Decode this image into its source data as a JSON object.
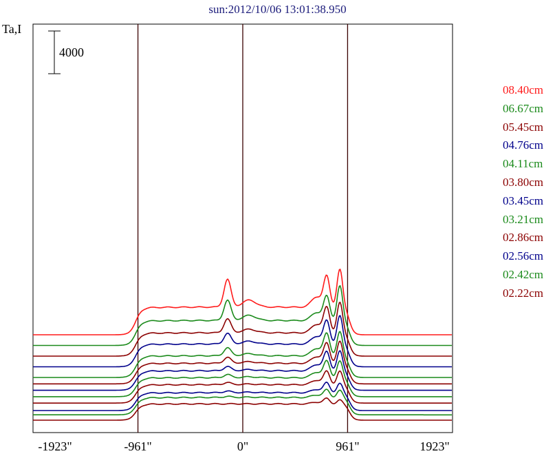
{
  "header": {
    "title": "sun:2012/10/06 13:01:38.950"
  },
  "chart_data": {
    "type": "line",
    "title": "sun:2012/10/06 13:01:38.950",
    "ylabel": "Ta,I",
    "scale_bar": "4000",
    "x_unit": "arcsec",
    "xlim": [
      -1923,
      1923
    ],
    "x_ticks": [
      "-1923\"",
      "-961\"",
      "0\"",
      "961\"",
      "1923\""
    ],
    "x_tick_values": [
      -1923,
      -961,
      0,
      961,
      1923
    ],
    "vertical_lines": [
      -961,
      0,
      961
    ],
    "profile_note": "stacked solar brightness scans, offset vertically; each trace: quiet-sun plateau between limbs with peaks near x=-140 and near the west limb (~770 and ~890)",
    "series": [
      {
        "name": "08.40cm",
        "color": "#ff1a1a",
        "baseline": 8000,
        "disk": 2550,
        "center_peak": 2600,
        "limb_peak1": 2800,
        "limb_peak2": 3600
      },
      {
        "name": "06.67cm",
        "color": "#1a8a1a",
        "baseline": 7000,
        "disk": 2300,
        "center_peak": 1900,
        "limb_peak1": 2200,
        "limb_peak2": 3300
      },
      {
        "name": "05.45cm",
        "color": "#8b0000",
        "baseline": 6000,
        "disk": 2150,
        "center_peak": 1300,
        "limb_peak1": 2300,
        "limb_peak2": 2900
      },
      {
        "name": "04.76cm",
        "color": "#00008b",
        "baseline": 5000,
        "disk": 2100,
        "center_peak": 1000,
        "limb_peak1": 2100,
        "limb_peak2": 2700
      },
      {
        "name": "04.11cm",
        "color": "#1a8a1a",
        "baseline": 4000,
        "disk": 2000,
        "center_peak": 750,
        "limb_peak1": 2000,
        "limb_peak2": 2300
      },
      {
        "name": "03.80cm",
        "color": "#8b0000",
        "baseline": 3400,
        "disk": 1900,
        "center_peak": 550,
        "limb_peak1": 1800,
        "limb_peak2": 2100
      },
      {
        "name": "03.45cm",
        "color": "#00008b",
        "baseline": 2800,
        "disk": 1800,
        "center_peak": 400,
        "limb_peak1": 1700,
        "limb_peak2": 1900
      },
      {
        "name": "03.21cm",
        "color": "#1a8a1a",
        "baseline": 2200,
        "disk": 1750,
        "center_peak": 300,
        "limb_peak1": 1500,
        "limb_peak2": 1600
      },
      {
        "name": "02.86cm",
        "color": "#8b0000",
        "baseline": 1600,
        "disk": 1700,
        "center_peak": 200,
        "limb_peak1": 1200,
        "limb_peak2": 1300
      },
      {
        "name": "02.56cm",
        "color": "#00008b",
        "baseline": 900,
        "disk": 1650,
        "center_peak": 150,
        "limb_peak1": 900,
        "limb_peak2": 900
      },
      {
        "name": "02.42cm",
        "color": "#1a8a1a",
        "baseline": 500,
        "disk": 1600,
        "center_peak": 100,
        "limb_peak1": 700,
        "limb_peak2": 700
      },
      {
        "name": "02.22cm",
        "color": "#8b0000",
        "baseline": 0,
        "disk": 1500,
        "center_peak": 0,
        "limb_peak1": 500,
        "limb_peak2": 400
      }
    ]
  }
}
